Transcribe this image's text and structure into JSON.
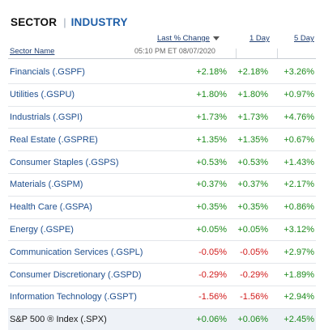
{
  "tabs": {
    "sector": "SECTOR",
    "separator": "|",
    "industry": "INDUSTRY"
  },
  "columns": {
    "name": "Sector Name",
    "last": "Last % Change",
    "one_day": "1 Day",
    "five_day": "5 Day",
    "timestamp": "05:10 PM ET 08/07/2020"
  },
  "colors": {
    "positive": "#1c8a1c",
    "negative": "#d11b1b",
    "link": "#1f4f8f",
    "accent": "#1f5fa8"
  },
  "rows": [
    {
      "name": "Financials (.GSPF)",
      "last": "+2.18%",
      "one_day": "+2.18%",
      "five_day": "+3.26%"
    },
    {
      "name": "Utilities (.GSPU)",
      "last": "+1.80%",
      "one_day": "+1.80%",
      "five_day": "+0.97%"
    },
    {
      "name": "Industrials (.GSPI)",
      "last": "+1.73%",
      "one_day": "+1.73%",
      "five_day": "+4.76%"
    },
    {
      "name": "Real Estate (.GSPRE)",
      "last": "+1.35%",
      "one_day": "+1.35%",
      "five_day": "+0.67%"
    },
    {
      "name": "Consumer Staples (.GSPS)",
      "last": "+0.53%",
      "one_day": "+0.53%",
      "five_day": "+1.43%"
    },
    {
      "name": "Materials (.GSPM)",
      "last": "+0.37%",
      "one_day": "+0.37%",
      "five_day": "+2.17%"
    },
    {
      "name": "Health Care (.GSPA)",
      "last": "+0.35%",
      "one_day": "+0.35%",
      "five_day": "+0.86%"
    },
    {
      "name": "Energy (.GSPE)",
      "last": "+0.05%",
      "one_day": "+0.05%",
      "five_day": "+3.12%"
    },
    {
      "name": "Communication Services (.GSPL)",
      "last": "-0.05%",
      "one_day": "-0.05%",
      "five_day": "+2.97%"
    },
    {
      "name": "Consumer Discretionary (.GSPD)",
      "last": "-0.29%",
      "one_day": "-0.29%",
      "five_day": "+1.89%"
    },
    {
      "name": "Information Technology (.GSPT)",
      "last": "-1.56%",
      "one_day": "-1.56%",
      "five_day": "+2.94%"
    }
  ],
  "total": {
    "name": "S&P 500 ® Index (.SPX)",
    "last": "+0.06%",
    "one_day": "+0.06%",
    "five_day": "+2.45%"
  }
}
